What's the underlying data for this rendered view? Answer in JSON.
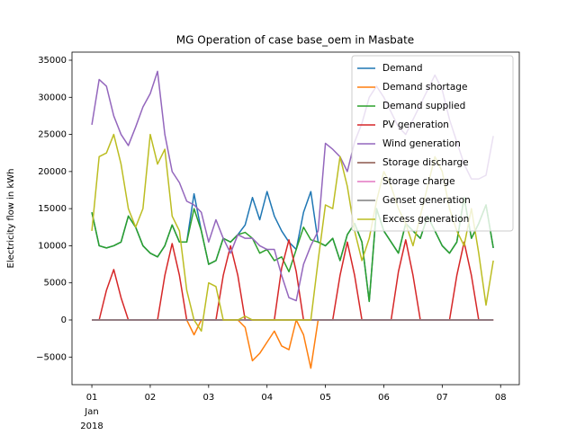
{
  "chart_data": {
    "type": "line",
    "title": "MG Operation of case base_oem in Masbate",
    "ylabel": "Electricity flow in kWh",
    "x_date_label": [
      "Jan",
      "2018"
    ],
    "x": [
      1,
      1.125,
      1.25,
      1.375,
      1.5,
      1.625,
      1.75,
      1.875,
      2,
      2.125,
      2.25,
      2.375,
      2.5,
      2.625,
      2.75,
      2.875,
      3,
      3.125,
      3.25,
      3.375,
      3.5,
      3.625,
      3.75,
      3.875,
      4,
      4.125,
      4.25,
      4.375,
      4.5,
      4.625,
      4.75,
      4.875,
      5,
      5.125,
      5.25,
      5.375,
      5.5,
      5.625,
      5.75,
      5.875,
      6,
      6.125,
      6.25,
      6.375,
      6.5,
      6.625,
      6.75,
      6.875,
      7,
      7.125,
      7.25,
      7.375,
      7.5,
      7.625,
      7.75,
      7.875
    ],
    "xlim": [
      0.66,
      8.32
    ],
    "xticks": [
      {
        "value": 1,
        "label": "01"
      },
      {
        "value": 2,
        "label": "02"
      },
      {
        "value": 3,
        "label": "03"
      },
      {
        "value": 4,
        "label": "04"
      },
      {
        "value": 5,
        "label": "05"
      },
      {
        "value": 6,
        "label": "06"
      },
      {
        "value": 7,
        "label": "07"
      },
      {
        "value": 8,
        "label": "08"
      }
    ],
    "ylim": [
      -8720,
      36090
    ],
    "yticks": [
      {
        "value": -5000,
        "label": "−5000"
      },
      0,
      5000,
      10000,
      15000,
      20000,
      25000,
      30000,
      35000
    ],
    "legend": "upper right",
    "series": [
      {
        "name": "Demand",
        "color": "#1f77b4",
        "values": [
          14500,
          10000,
          9700,
          10000,
          10500,
          14000,
          12500,
          10000,
          9000,
          8500,
          10000,
          12800,
          10500,
          10500,
          17000,
          12000,
          7500,
          8000,
          11000,
          10500,
          11500,
          12800,
          16500,
          13500,
          17300,
          14000,
          12000,
          10500,
          9500,
          14500,
          17300,
          10500,
          10000,
          11000,
          8000,
          11500,
          13000,
          10500,
          2500,
          15000,
          12000,
          10500,
          9000,
          13000,
          12000,
          11000,
          14000,
          12000,
          10000,
          9000,
          10500,
          16500,
          11000,
          13000,
          15500,
          9700
        ]
      },
      {
        "name": "Demand shortage",
        "color": "#ff7f0e",
        "values": [
          0,
          0,
          0,
          0,
          0,
          0,
          0,
          0,
          0,
          0,
          0,
          0,
          0,
          0,
          -2000,
          0,
          0,
          0,
          0,
          0,
          0,
          -1000,
          -5500,
          -4500,
          -3000,
          -1500,
          -3500,
          -4000,
          0,
          -2000,
          -6500,
          0,
          0,
          0,
          0,
          0,
          0,
          0,
          0,
          0,
          0,
          0,
          0,
          0,
          0,
          0,
          0,
          0,
          0,
          0,
          0,
          0,
          0,
          0,
          0,
          0
        ]
      },
      {
        "name": "Demand supplied",
        "color": "#2ca02c",
        "values": [
          14500,
          10000,
          9700,
          10000,
          10500,
          14000,
          12500,
          10000,
          9000,
          8500,
          10000,
          12800,
          10500,
          10500,
          15000,
          12000,
          7500,
          8000,
          11000,
          10500,
          11500,
          11800,
          11000,
          9000,
          9500,
          8000,
          8500,
          6500,
          9500,
          12500,
          10800,
          10500,
          10000,
          11000,
          8000,
          11500,
          13000,
          10500,
          2500,
          15000,
          12000,
          10500,
          9000,
          13000,
          12000,
          11000,
          14000,
          12000,
          10000,
          9000,
          10500,
          16500,
          11000,
          13000,
          15500,
          9700
        ]
      },
      {
        "name": "PV generation",
        "color": "#d62728",
        "values": [
          0,
          0,
          4000,
          6800,
          3000,
          0,
          0,
          0,
          0,
          0,
          6000,
          10300,
          6000,
          0,
          0,
          0,
          0,
          0,
          6000,
          10000,
          6000,
          0,
          0,
          0,
          0,
          0,
          7000,
          10800,
          6500,
          0,
          0,
          0,
          0,
          0,
          6000,
          10500,
          6000,
          0,
          0,
          0,
          0,
          0,
          6500,
          10800,
          6000,
          0,
          0,
          0,
          0,
          0,
          6000,
          10500,
          6000,
          0,
          0,
          0
        ]
      },
      {
        "name": "Wind generation",
        "color": "#9467bd",
        "values": [
          26300,
          32400,
          31500,
          27500,
          25000,
          23500,
          26000,
          28700,
          30500,
          33500,
          25000,
          20000,
          18500,
          16000,
          15500,
          14500,
          10500,
          13500,
          11000,
          9000,
          11500,
          11000,
          11000,
          10000,
          9500,
          9500,
          6000,
          3000,
          2600,
          7500,
          10000,
          12000,
          23800,
          23000,
          22000,
          20000,
          24000,
          26500,
          30000,
          31500,
          30000,
          28000,
          26000,
          25000,
          27000,
          29000,
          31000,
          33000,
          31000,
          27000,
          24000,
          21000,
          19000,
          19000,
          19500,
          24800
        ]
      },
      {
        "name": "Storage discharge",
        "color": "#8c564b",
        "values": [
          0,
          0,
          0,
          0,
          0,
          0,
          0,
          0,
          0,
          0,
          0,
          0,
          0,
          0,
          0,
          0,
          0,
          0,
          0,
          0,
          0,
          0,
          0,
          0,
          0,
          0,
          0,
          0,
          0,
          0,
          0,
          0,
          0,
          0,
          0,
          0,
          0,
          0,
          0,
          0,
          0,
          0,
          0,
          0,
          0,
          0,
          0,
          0,
          0,
          0,
          0,
          0,
          0,
          0,
          0,
          0
        ]
      },
      {
        "name": "Storage charge",
        "color": "#e377c2",
        "values": [
          0,
          0,
          0,
          0,
          0,
          0,
          0,
          0,
          0,
          0,
          0,
          0,
          0,
          0,
          0,
          0,
          0,
          0,
          0,
          0,
          0,
          0,
          0,
          0,
          0,
          0,
          0,
          0,
          0,
          0,
          0,
          0,
          0,
          0,
          0,
          0,
          0,
          0,
          0,
          0,
          0,
          0,
          0,
          0,
          0,
          0,
          0,
          0,
          0,
          0,
          0,
          0,
          0,
          0,
          0,
          0
        ]
      },
      {
        "name": "Genset generation",
        "color": "#7f7f7f",
        "values": [
          0,
          0,
          0,
          0,
          0,
          0,
          0,
          0,
          0,
          0,
          0,
          0,
          0,
          0,
          0,
          0,
          0,
          0,
          0,
          0,
          0,
          0,
          0,
          0,
          0,
          0,
          0,
          0,
          0,
          0,
          0,
          0,
          0,
          0,
          0,
          0,
          0,
          0,
          0,
          0,
          0,
          0,
          0,
          0,
          0,
          0,
          0,
          0,
          0,
          0,
          0,
          0,
          0,
          0,
          0,
          0
        ]
      },
      {
        "name": "Excess generation",
        "color": "#bcbd22",
        "values": [
          12000,
          22000,
          22500,
          25000,
          21000,
          15000,
          12500,
          15000,
          25000,
          21000,
          23000,
          14000,
          12000,
          4000,
          0,
          -1500,
          5000,
          4500,
          0,
          0,
          0,
          500,
          0,
          0,
          0,
          0,
          0,
          0,
          0,
          0,
          0,
          8000,
          15500,
          15000,
          22000,
          18000,
          12000,
          8000,
          11000,
          16000,
          20000,
          18000,
          15000,
          13000,
          10000,
          14000,
          18000,
          22000,
          20000,
          15000,
          12000,
          10000,
          15000,
          9000,
          2000,
          8000
        ]
      }
    ]
  }
}
